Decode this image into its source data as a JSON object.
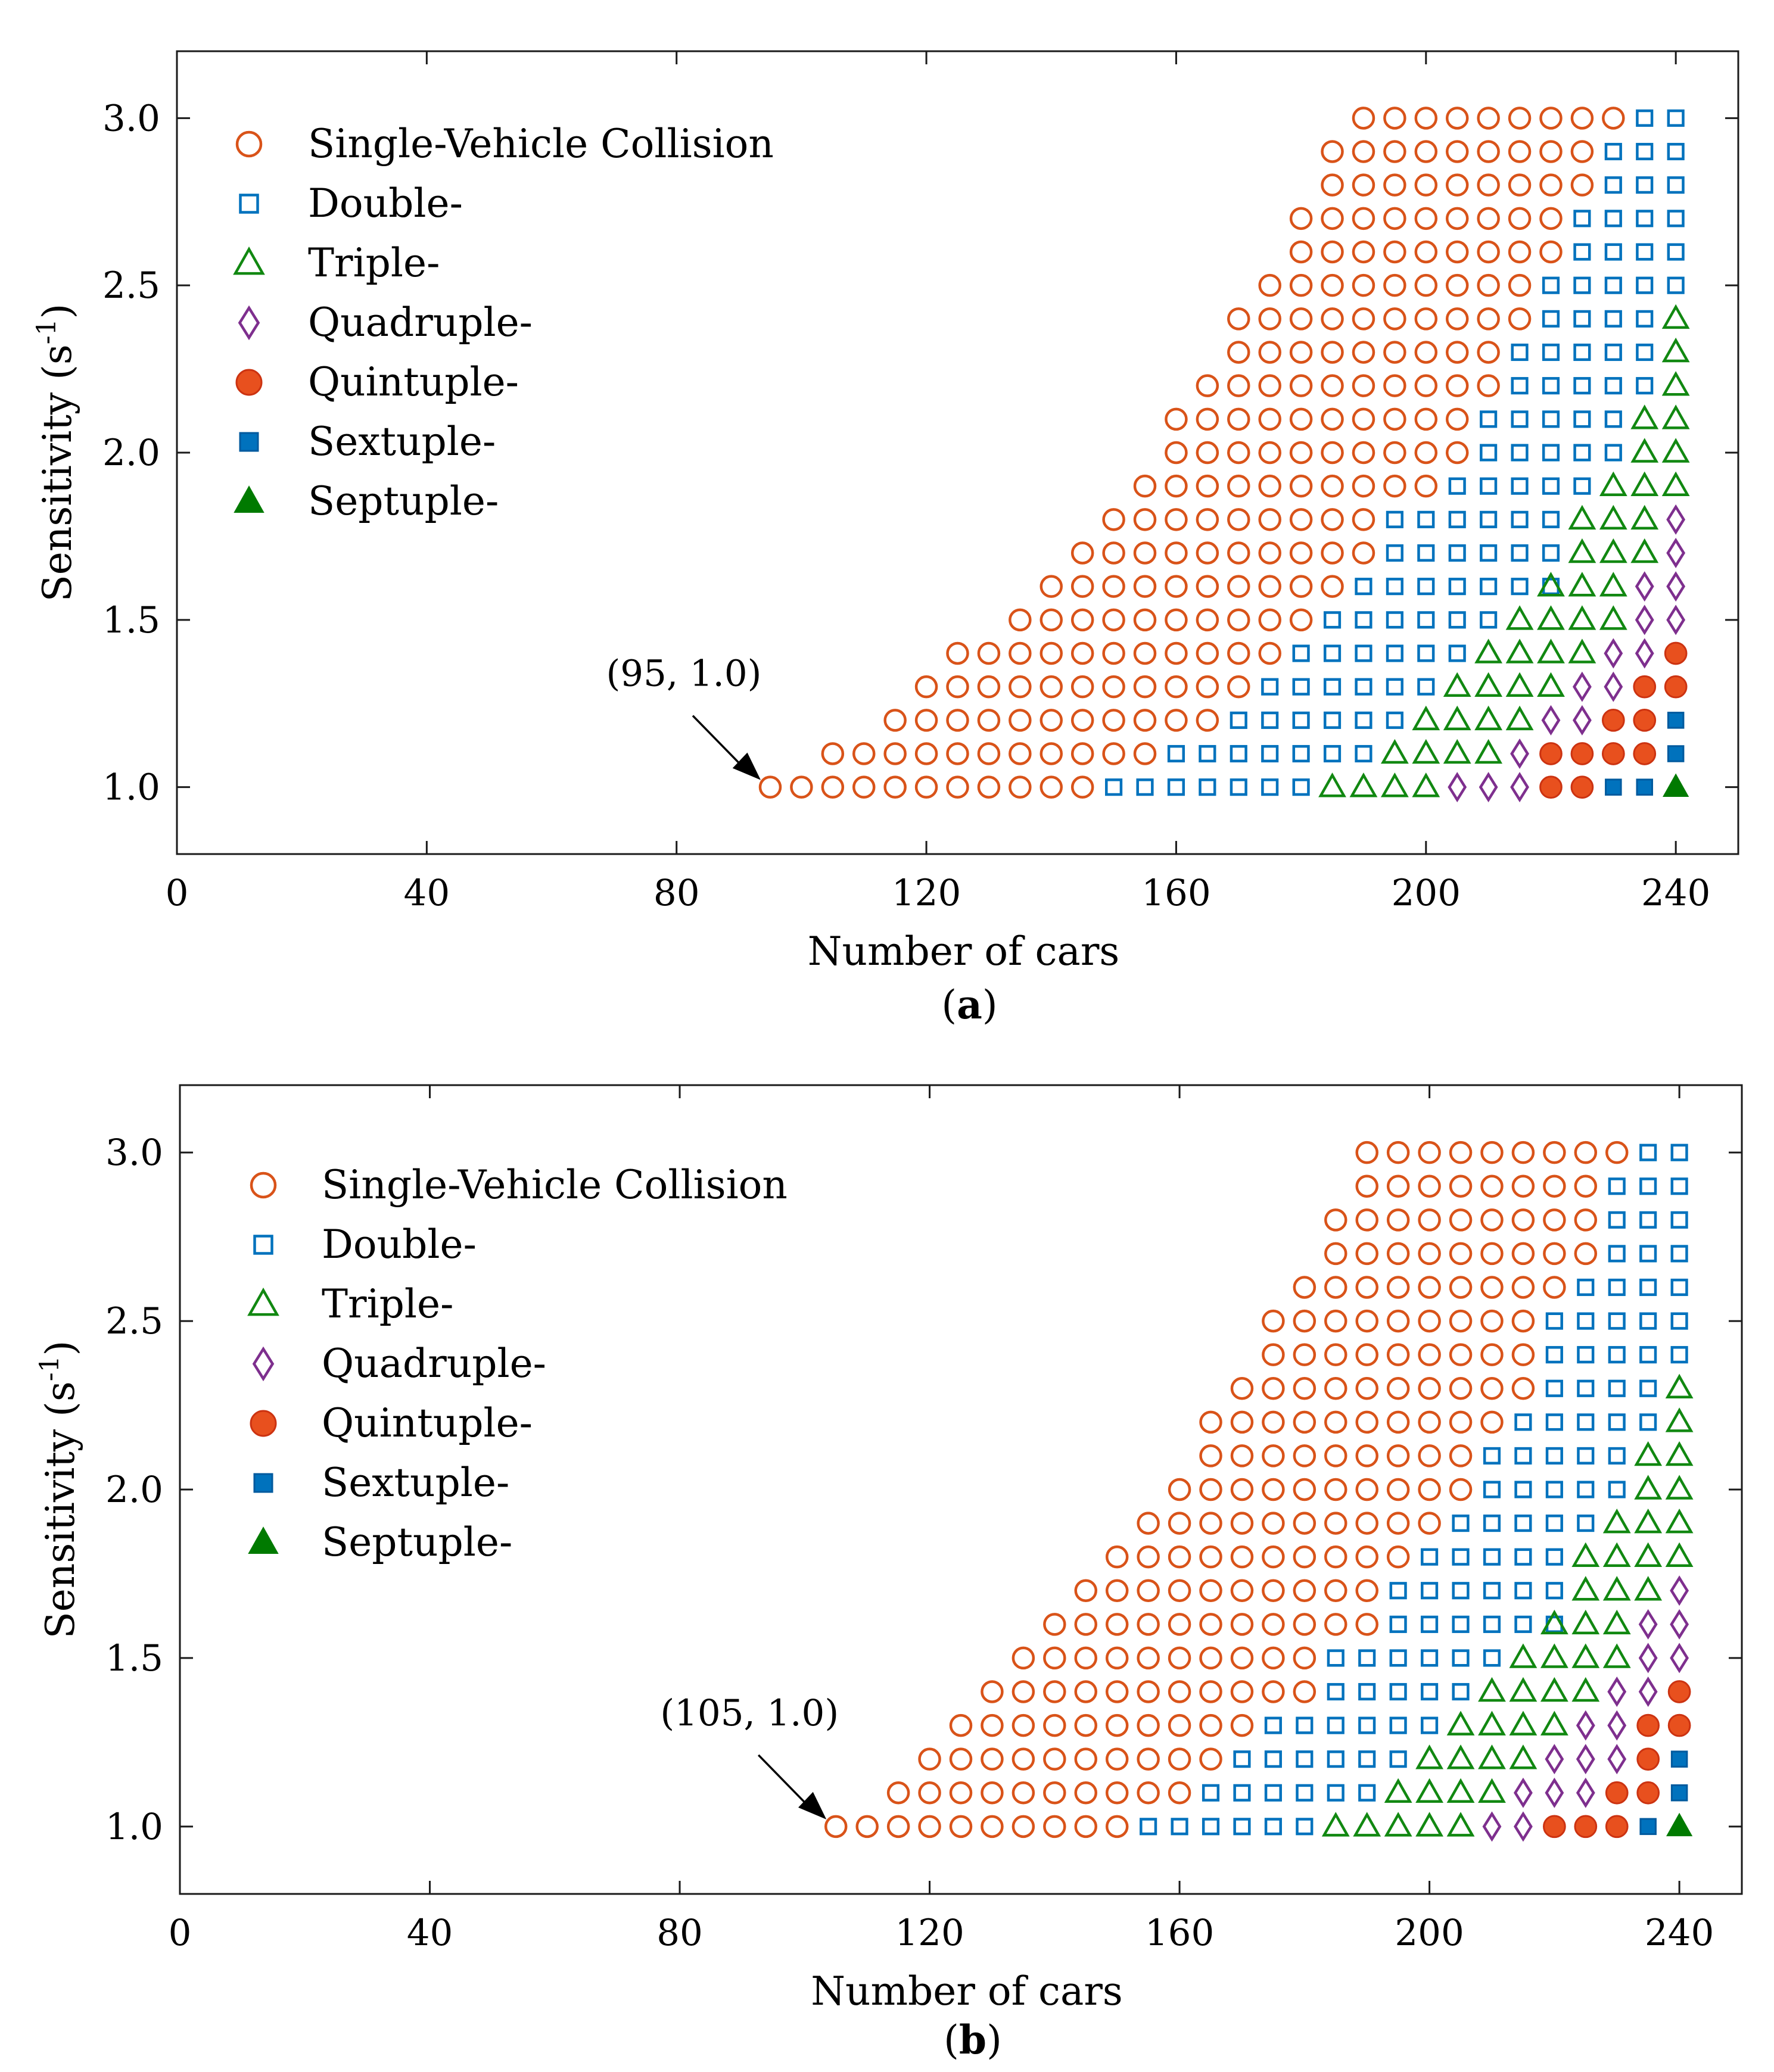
{
  "colors": {
    "single": "#d95319",
    "double": "#0072bd",
    "triple": "#118811",
    "quadruple": "#7e2f8e",
    "quintuple_fill": "#e8501e",
    "quintuple_edge": "#cc3311",
    "sextuple_fill": "#0072bd",
    "septuple_fill": "#007a00"
  },
  "chart_data": [
    {
      "type": "scatter",
      "panel": "a",
      "caption_letter": "a",
      "xlabel": "Number of cars",
      "ylabel": "Sensitivity (s",
      "ylabel_sup": "-1",
      "ylabel_close": ")",
      "xlim": [
        0,
        250
      ],
      "ylim": [
        0.8,
        3.2
      ],
      "xticks": [
        0,
        40,
        80,
        120,
        160,
        200,
        240
      ],
      "yticks": [
        {
          "v": 1.0,
          "label": "1.0"
        },
        {
          "v": 1.5,
          "label": "1.5"
        },
        {
          "v": 2.0,
          "label": "2.0"
        },
        {
          "v": 2.5,
          "label": "2.5"
        },
        {
          "v": 3.0,
          "label": "3.0"
        }
      ],
      "annotation": {
        "text": "(95, 1.0)",
        "x": 95,
        "y": 1.0
      },
      "legend": [
        {
          "key": "single",
          "label": "Single-Vehicle Collision"
        },
        {
          "key": "double",
          "label": "Double-"
        },
        {
          "key": "triple",
          "label": "Triple-"
        },
        {
          "key": "quadruple",
          "label": "Quadruple-"
        },
        {
          "key": "quintuple",
          "label": "Quintuple-"
        },
        {
          "key": "sextuple",
          "label": "Sextuple-"
        },
        {
          "key": "septuple",
          "label": "Septuple-"
        }
      ],
      "x_step": 5,
      "rows": [
        {
          "y": 1.0,
          "segments": [
            [
              "single",
              95,
              145
            ],
            [
              "double",
              150,
              180
            ],
            [
              "triple",
              185,
              200
            ],
            [
              "quadruple",
              205,
              215
            ],
            [
              "quintuple",
              220,
              225
            ],
            [
              "sextuple",
              230,
              235
            ],
            [
              "septuple",
              240,
              240
            ]
          ]
        },
        {
          "y": 1.1,
          "segments": [
            [
              "single",
              105,
              155
            ],
            [
              "double",
              160,
              190
            ],
            [
              "triple",
              195,
              210
            ],
            [
              "quadruple",
              215,
              215
            ],
            [
              "quintuple",
              220,
              235
            ],
            [
              "sextuple",
              240,
              240
            ]
          ]
        },
        {
          "y": 1.2,
          "segments": [
            [
              "single",
              115,
              165
            ],
            [
              "double",
              170,
              195
            ],
            [
              "triple",
              200,
              215
            ],
            [
              "quadruple",
              220,
              225
            ],
            [
              "quintuple",
              230,
              235
            ],
            [
              "sextuple",
              240,
              240
            ]
          ]
        },
        {
          "y": 1.3,
          "segments": [
            [
              "single",
              120,
              170
            ],
            [
              "double",
              175,
              200
            ],
            [
              "triple",
              205,
              220
            ],
            [
              "quadruple",
              225,
              230
            ],
            [
              "quintuple",
              235,
              240
            ]
          ]
        },
        {
          "y": 1.4,
          "segments": [
            [
              "single",
              125,
              175
            ],
            [
              "double",
              180,
              205
            ],
            [
              "triple",
              210,
              225
            ],
            [
              "quadruple",
              230,
              235
            ],
            [
              "quintuple",
              240,
              240
            ]
          ]
        },
        {
          "y": 1.5,
          "segments": [
            [
              "single",
              135,
              180
            ],
            [
              "double",
              185,
              210
            ],
            [
              "triple",
              215,
              230
            ],
            [
              "quadruple",
              235,
              240
            ]
          ]
        },
        {
          "y": 1.6,
          "segments": [
            [
              "single",
              140,
              185
            ],
            [
              "double",
              190,
              220
            ],
            [
              "triple",
              220,
              230
            ],
            [
              "quadruple",
              235,
              240
            ]
          ]
        },
        {
          "y": 1.7,
          "segments": [
            [
              "single",
              145,
              190
            ],
            [
              "double",
              195,
              220
            ],
            [
              "triple",
              225,
              235
            ],
            [
              "quadruple",
              240,
              240
            ]
          ]
        },
        {
          "y": 1.8,
          "segments": [
            [
              "single",
              150,
              190
            ],
            [
              "double",
              195,
              220
            ],
            [
              "triple",
              225,
              235
            ],
            [
              "quadruple",
              240,
              240
            ]
          ]
        },
        {
          "y": 1.9,
          "segments": [
            [
              "single",
              155,
              200
            ],
            [
              "double",
              205,
              225
            ],
            [
              "triple",
              230,
              240
            ]
          ]
        },
        {
          "y": 2.0,
          "segments": [
            [
              "single",
              160,
              205
            ],
            [
              "double",
              210,
              230
            ],
            [
              "triple",
              235,
              240
            ]
          ]
        },
        {
          "y": 2.1,
          "segments": [
            [
              "single",
              160,
              205
            ],
            [
              "double",
              210,
              230
            ],
            [
              "triple",
              235,
              240
            ]
          ]
        },
        {
          "y": 2.2,
          "segments": [
            [
              "single",
              165,
              210
            ],
            [
              "double",
              215,
              235
            ],
            [
              "triple",
              240,
              240
            ]
          ]
        },
        {
          "y": 2.3,
          "segments": [
            [
              "single",
              170,
              210
            ],
            [
              "double",
              215,
              235
            ],
            [
              "triple",
              240,
              240
            ]
          ]
        },
        {
          "y": 2.4,
          "segments": [
            [
              "single",
              170,
              215
            ],
            [
              "double",
              220,
              235
            ],
            [
              "triple",
              240,
              240
            ]
          ]
        },
        {
          "y": 2.5,
          "segments": [
            [
              "single",
              175,
              215
            ],
            [
              "double",
              220,
              240
            ]
          ]
        },
        {
          "y": 2.6,
          "segments": [
            [
              "single",
              180,
              220
            ],
            [
              "double",
              225,
              240
            ]
          ]
        },
        {
          "y": 2.7,
          "segments": [
            [
              "single",
              180,
              220
            ],
            [
              "double",
              225,
              240
            ]
          ]
        },
        {
          "y": 2.8,
          "segments": [
            [
              "single",
              185,
              225
            ],
            [
              "double",
              230,
              240
            ]
          ]
        },
        {
          "y": 2.9,
          "segments": [
            [
              "single",
              185,
              225
            ],
            [
              "double",
              230,
              240
            ]
          ]
        },
        {
          "y": 3.0,
          "segments": [
            [
              "single",
              190,
              230
            ],
            [
              "double",
              235,
              240
            ]
          ]
        }
      ]
    },
    {
      "type": "scatter",
      "panel": "b",
      "caption_letter": "b",
      "xlabel": "Number of cars",
      "ylabel": "Sensitivity (s",
      "ylabel_sup": "-1",
      "ylabel_close": ")",
      "xlim": [
        0,
        250
      ],
      "ylim": [
        0.8,
        3.2
      ],
      "xticks": [
        0,
        40,
        80,
        120,
        160,
        200,
        240
      ],
      "yticks": [
        {
          "v": 1.0,
          "label": "1.0"
        },
        {
          "v": 1.5,
          "label": "1.5"
        },
        {
          "v": 2.0,
          "label": "2.0"
        },
        {
          "v": 2.5,
          "label": "2.5"
        },
        {
          "v": 3.0,
          "label": "3.0"
        }
      ],
      "annotation": {
        "text": "(105, 1.0)",
        "x": 105,
        "y": 1.0
      },
      "legend": [
        {
          "key": "single",
          "label": "Single-Vehicle Collision"
        },
        {
          "key": "double",
          "label": "Double-"
        },
        {
          "key": "triple",
          "label": "Triple-"
        },
        {
          "key": "quadruple",
          "label": "Quadruple-"
        },
        {
          "key": "quintuple",
          "label": "Quintuple-"
        },
        {
          "key": "sextuple",
          "label": "Sextuple-"
        },
        {
          "key": "septuple",
          "label": "Septuple-"
        }
      ],
      "x_step": 5,
      "rows": [
        {
          "y": 1.0,
          "segments": [
            [
              "single",
              105,
              150
            ],
            [
              "double",
              155,
              180
            ],
            [
              "triple",
              185,
              205
            ],
            [
              "quadruple",
              210,
              215
            ],
            [
              "quintuple",
              220,
              230
            ],
            [
              "sextuple",
              235,
              235
            ],
            [
              "septuple",
              240,
              240
            ]
          ]
        },
        {
          "y": 1.1,
          "segments": [
            [
              "single",
              115,
              160
            ],
            [
              "double",
              165,
              190
            ],
            [
              "triple",
              195,
              210
            ],
            [
              "quadruple",
              215,
              225
            ],
            [
              "quintuple",
              230,
              235
            ],
            [
              "sextuple",
              240,
              240
            ]
          ]
        },
        {
          "y": 1.2,
          "segments": [
            [
              "single",
              120,
              165
            ],
            [
              "double",
              170,
              195
            ],
            [
              "triple",
              200,
              215
            ],
            [
              "quadruple",
              220,
              230
            ],
            [
              "quintuple",
              235,
              235
            ],
            [
              "sextuple",
              240,
              240
            ]
          ]
        },
        {
          "y": 1.3,
          "segments": [
            [
              "single",
              125,
              170
            ],
            [
              "double",
              175,
              200
            ],
            [
              "triple",
              205,
              220
            ],
            [
              "quadruple",
              225,
              230
            ],
            [
              "quintuple",
              235,
              240
            ]
          ]
        },
        {
          "y": 1.4,
          "segments": [
            [
              "single",
              130,
              180
            ],
            [
              "double",
              185,
              205
            ],
            [
              "triple",
              210,
              225
            ],
            [
              "quadruple",
              230,
              235
            ],
            [
              "quintuple",
              240,
              240
            ]
          ]
        },
        {
          "y": 1.5,
          "segments": [
            [
              "single",
              135,
              180
            ],
            [
              "double",
              185,
              210
            ],
            [
              "triple",
              215,
              230
            ],
            [
              "quadruple",
              235,
              240
            ]
          ]
        },
        {
          "y": 1.6,
          "segments": [
            [
              "single",
              140,
              190
            ],
            [
              "double",
              195,
              220
            ],
            [
              "triple",
              220,
              230
            ],
            [
              "quadruple",
              235,
              240
            ]
          ]
        },
        {
          "y": 1.7,
          "segments": [
            [
              "single",
              145,
              190
            ],
            [
              "double",
              195,
              220
            ],
            [
              "triple",
              225,
              235
            ],
            [
              "quadruple",
              240,
              240
            ]
          ]
        },
        {
          "y": 1.8,
          "segments": [
            [
              "single",
              150,
              195
            ],
            [
              "double",
              200,
              220
            ],
            [
              "triple",
              225,
              240
            ]
          ]
        },
        {
          "y": 1.9,
          "segments": [
            [
              "single",
              155,
              200
            ],
            [
              "double",
              205,
              225
            ],
            [
              "triple",
              230,
              240
            ]
          ]
        },
        {
          "y": 2.0,
          "segments": [
            [
              "single",
              160,
              205
            ],
            [
              "double",
              210,
              230
            ],
            [
              "triple",
              235,
              240
            ]
          ]
        },
        {
          "y": 2.1,
          "segments": [
            [
              "single",
              165,
              205
            ],
            [
              "double",
              210,
              230
            ],
            [
              "triple",
              235,
              240
            ]
          ]
        },
        {
          "y": 2.2,
          "segments": [
            [
              "single",
              165,
              210
            ],
            [
              "double",
              215,
              235
            ],
            [
              "triple",
              240,
              240
            ]
          ]
        },
        {
          "y": 2.3,
          "segments": [
            [
              "single",
              170,
              215
            ],
            [
              "double",
              220,
              235
            ],
            [
              "triple",
              240,
              240
            ]
          ]
        },
        {
          "y": 2.4,
          "segments": [
            [
              "single",
              175,
              215
            ],
            [
              "double",
              220,
              240
            ]
          ]
        },
        {
          "y": 2.5,
          "segments": [
            [
              "single",
              175,
              215
            ],
            [
              "double",
              220,
              240
            ]
          ]
        },
        {
          "y": 2.6,
          "segments": [
            [
              "single",
              180,
              220
            ],
            [
              "double",
              225,
              240
            ]
          ]
        },
        {
          "y": 2.7,
          "segments": [
            [
              "single",
              185,
              225
            ],
            [
              "double",
              230,
              240
            ]
          ]
        },
        {
          "y": 2.8,
          "segments": [
            [
              "single",
              185,
              225
            ],
            [
              "double",
              230,
              240
            ]
          ]
        },
        {
          "y": 2.9,
          "segments": [
            [
              "single",
              190,
              225
            ],
            [
              "double",
              230,
              240
            ]
          ]
        },
        {
          "y": 3.0,
          "segments": [
            [
              "single",
              190,
              230
            ],
            [
              "double",
              235,
              240
            ]
          ]
        }
      ]
    }
  ]
}
